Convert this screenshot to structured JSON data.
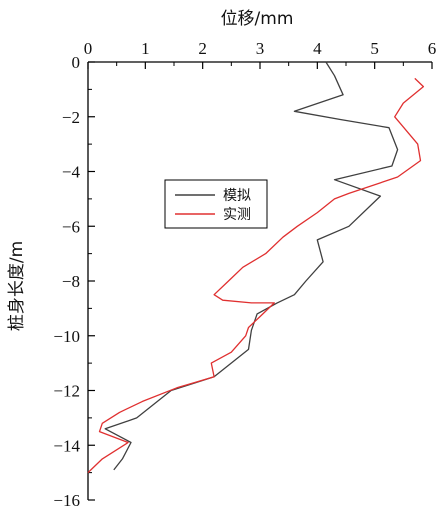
{
  "chart_data": {
    "type": "line",
    "title": "",
    "xlabel": "位移/mm",
    "ylabel": "桩身长度/m",
    "x_axis_position": "top",
    "xlim": [
      0,
      6
    ],
    "ylim": [
      -16,
      0
    ],
    "x_ticks": [
      "0",
      "1",
      "2",
      "3",
      "4",
      "5",
      "6"
    ],
    "y_ticks": [
      "0",
      "−2",
      "−4",
      "−6",
      "−8",
      "−10",
      "−12",
      "−14",
      "−16"
    ],
    "grid": false,
    "legend_position": "center-left",
    "series": [
      {
        "name": "模拟",
        "color": "#404040",
        "points": [
          [
            4.15,
            0
          ],
          [
            4.3,
            -0.5
          ],
          [
            4.45,
            -1.2
          ],
          [
            3.6,
            -1.8
          ],
          [
            4.4,
            -2.1
          ],
          [
            5.25,
            -2.4
          ],
          [
            5.4,
            -3.2
          ],
          [
            5.3,
            -3.8
          ],
          [
            4.3,
            -4.3
          ],
          [
            5.1,
            -4.9
          ],
          [
            4.55,
            -6.0
          ],
          [
            4.0,
            -6.5
          ],
          [
            4.1,
            -7.3
          ],
          [
            3.8,
            -8.0
          ],
          [
            3.6,
            -8.5
          ],
          [
            3.3,
            -8.8
          ],
          [
            2.95,
            -9.2
          ],
          [
            2.9,
            -9.5
          ],
          [
            2.85,
            -9.8
          ],
          [
            2.8,
            -10.5
          ],
          [
            2.2,
            -11.5
          ],
          [
            1.45,
            -12.0
          ],
          [
            0.85,
            -13.0
          ],
          [
            0.3,
            -13.4
          ],
          [
            0.75,
            -13.9
          ],
          [
            0.6,
            -14.5
          ],
          [
            0.45,
            -14.9
          ]
        ]
      },
      {
        "name": "实测",
        "color": "#e03030",
        "points": [
          [
            5.7,
            -0.6
          ],
          [
            5.85,
            -0.9
          ],
          [
            5.5,
            -1.5
          ],
          [
            5.35,
            -2.0
          ],
          [
            5.55,
            -2.5
          ],
          [
            5.75,
            -3.0
          ],
          [
            5.8,
            -3.6
          ],
          [
            5.4,
            -4.2
          ],
          [
            4.55,
            -4.8
          ],
          [
            4.3,
            -5.0
          ],
          [
            4.0,
            -5.5
          ],
          [
            3.65,
            -6.0
          ],
          [
            3.4,
            -6.4
          ],
          [
            3.1,
            -7.0
          ],
          [
            2.7,
            -7.5
          ],
          [
            2.45,
            -8.0
          ],
          [
            2.2,
            -8.5
          ],
          [
            2.35,
            -8.7
          ],
          [
            2.85,
            -8.8
          ],
          [
            3.25,
            -8.8
          ],
          [
            3.0,
            -9.3
          ],
          [
            2.8,
            -9.7
          ],
          [
            2.75,
            -10.0
          ],
          [
            2.5,
            -10.6
          ],
          [
            2.15,
            -11.0
          ],
          [
            2.2,
            -11.5
          ],
          [
            1.55,
            -11.9
          ],
          [
            0.95,
            -12.4
          ],
          [
            0.55,
            -12.8
          ],
          [
            0.25,
            -13.2
          ],
          [
            0.2,
            -13.5
          ],
          [
            0.7,
            -13.9
          ],
          [
            0.25,
            -14.5
          ],
          [
            0.0,
            -15.0
          ]
        ]
      }
    ]
  }
}
